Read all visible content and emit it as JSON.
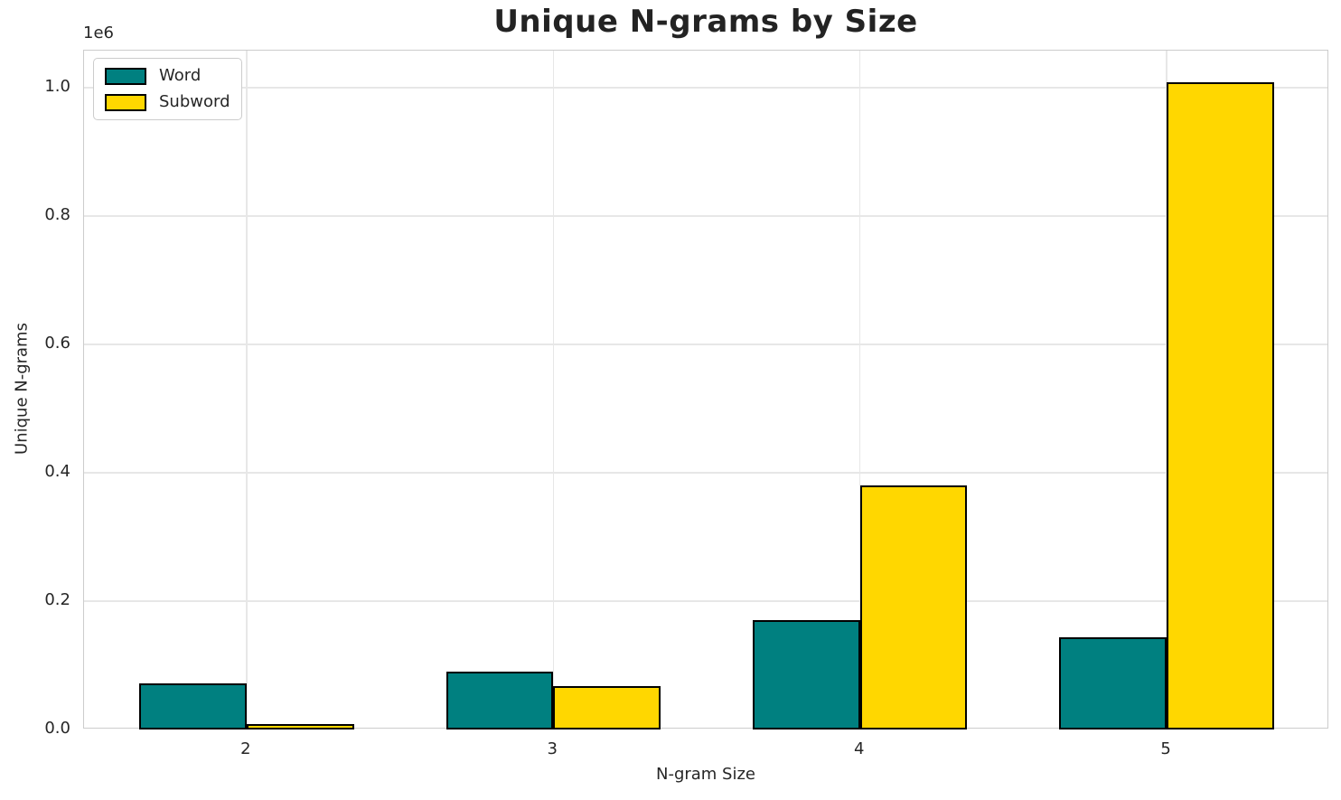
{
  "title": "Unique N-grams by Size",
  "chart_data": {
    "type": "bar",
    "title": "Unique N-grams by Size",
    "xlabel": "N-gram Size",
    "ylabel": "Unique N-grams",
    "categories": [
      "2",
      "3",
      "4",
      "5"
    ],
    "series": [
      {
        "name": "Word",
        "color": "#008080",
        "values": [
          72000,
          90000,
          170000,
          144000
        ]
      },
      {
        "name": "Subword",
        "color": "#FFD700",
        "values": [
          8000,
          68000,
          380000,
          1008000
        ]
      }
    ],
    "y_offset_text": "1e6",
    "y_ticks": [
      0,
      200000,
      400000,
      600000,
      800000,
      1000000
    ],
    "y_tick_labels": [
      "0.0",
      "0.2",
      "0.4",
      "0.6",
      "0.8",
      "1.0"
    ],
    "ylim": [
      0,
      1058000
    ],
    "x_margin_units": 0.53,
    "bar_width_units": 0.35,
    "grid": true,
    "legend_position": "upper left",
    "bar_edge_color": "#000000"
  },
  "style": {
    "background_color": "#ffffff",
    "grid_color": "#e7e7e7",
    "spine_color": "#cccccc",
    "text_color": "#262626"
  }
}
